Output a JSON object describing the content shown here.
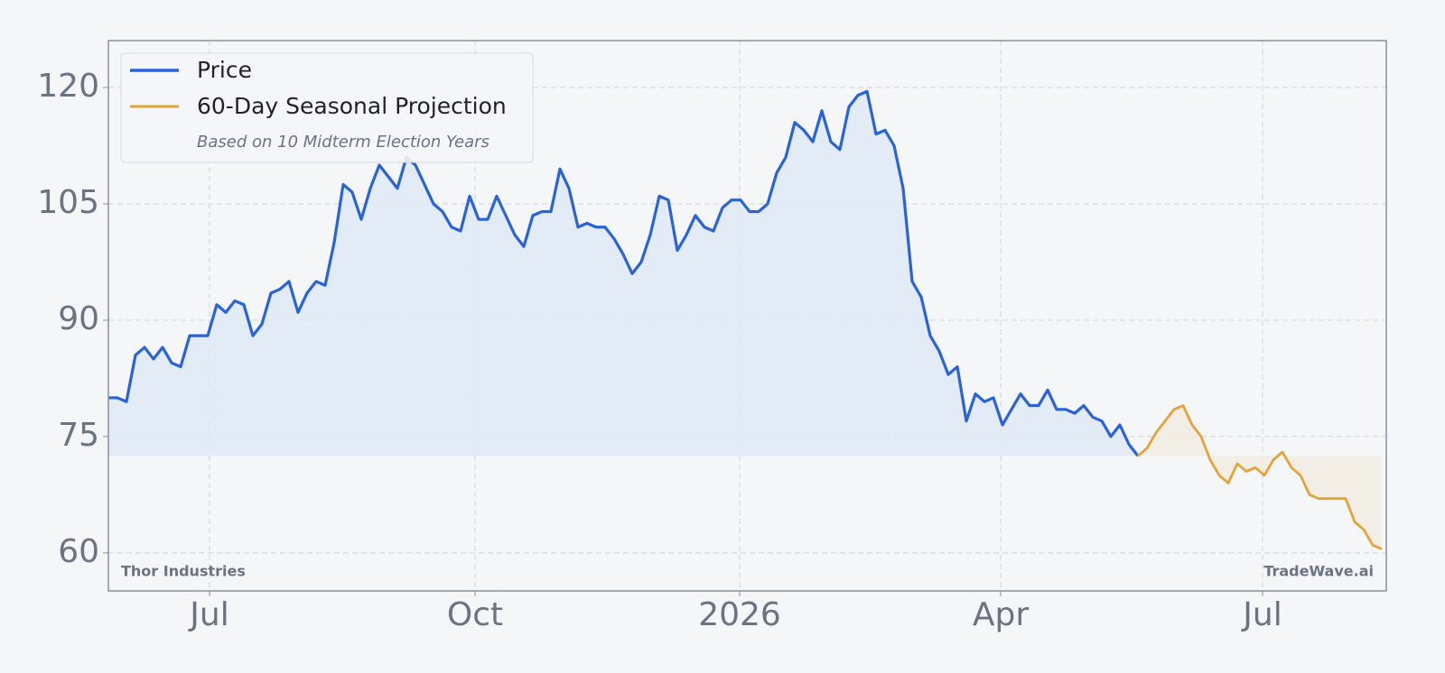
{
  "chart_data": {
    "type": "line",
    "watermark_left": "Thor Industries",
    "watermark_right": "TradeWave.ai",
    "legend_note": "Based on 10 Midterm Election Years",
    "legend": "upper left",
    "grid": true,
    "xlim": [
      0,
      141.5
    ],
    "xticks": [
      {
        "value": 11.2,
        "label": "Jul"
      },
      {
        "value": 40.6,
        "label": "Oct"
      },
      {
        "value": 69.9,
        "label": "2026"
      },
      {
        "value": 98.8,
        "label": "Apr"
      },
      {
        "value": 127.8,
        "label": "Jul"
      }
    ],
    "ylim": [
      55.1,
      126.05
    ],
    "yticks": [
      60,
      75,
      90,
      105,
      120
    ],
    "series": [
      {
        "name": "Price",
        "color": "#2a62d9",
        "fill": "#dfe9f6",
        "values": [
          80,
          80,
          79.5,
          85.5,
          86.5,
          85,
          86.5,
          84.5,
          84,
          88,
          88,
          88,
          92,
          91,
          92.5,
          92,
          88,
          89.5,
          93.5,
          94,
          95,
          91,
          93.5,
          95,
          94.5,
          100,
          107.5,
          106.5,
          103,
          107,
          110,
          108.5,
          107,
          111,
          110,
          107.5,
          105,
          104,
          102,
          101.5,
          106,
          103,
          103,
          106,
          103.5,
          101,
          99.5,
          103.5,
          104,
          104,
          109.5,
          107,
          102,
          102.5,
          102,
          102,
          100.5,
          98.5,
          96,
          97.5,
          101,
          106,
          105.5,
          99,
          101,
          103.5,
          102,
          101.5,
          104.5,
          105.5,
          105.5,
          104,
          104,
          105,
          109,
          111,
          115.5,
          114.5,
          113,
          117,
          113,
          112,
          117.5,
          119,
          119.5,
          114,
          114.5,
          112.5,
          107,
          95,
          93,
          88,
          86,
          83,
          84,
          77,
          80.5,
          79.5,
          80,
          76.5,
          78.5,
          80.5,
          79,
          79,
          81,
          78.5,
          78.5,
          78,
          79,
          77.5,
          77,
          75,
          76.5,
          74,
          72.5,
          null,
          null,
          null,
          null,
          null,
          null,
          null,
          null,
          null,
          null,
          null,
          null,
          null,
          null,
          null,
          null,
          null,
          null,
          null,
          null,
          null,
          null,
          null,
          null,
          null,
          null,
          null
        ]
      },
      {
        "name": "60-Day Seasonal Projection",
        "color": "#e3a43a",
        "fill": "#f1ebe2",
        "values": [
          null,
          null,
          null,
          null,
          null,
          null,
          null,
          null,
          null,
          null,
          null,
          null,
          null,
          null,
          null,
          null,
          null,
          null,
          null,
          null,
          null,
          null,
          null,
          null,
          null,
          null,
          null,
          null,
          null,
          null,
          null,
          null,
          null,
          null,
          null,
          null,
          null,
          null,
          null,
          null,
          null,
          null,
          null,
          null,
          null,
          null,
          null,
          null,
          null,
          null,
          null,
          null,
          null,
          null,
          null,
          null,
          null,
          null,
          null,
          null,
          null,
          null,
          null,
          null,
          null,
          null,
          null,
          null,
          null,
          null,
          null,
          null,
          null,
          null,
          null,
          null,
          null,
          null,
          null,
          null,
          null,
          null,
          null,
          null,
          null,
          null,
          null,
          null,
          null,
          null,
          null,
          null,
          null,
          null,
          null,
          null,
          null,
          null,
          null,
          null,
          null,
          null,
          null,
          null,
          null,
          null,
          null,
          null,
          null,
          null,
          null,
          null,
          null,
          null,
          72.5,
          73.5,
          75.5,
          77,
          78.5,
          79,
          76.5,
          75,
          72,
          70,
          69,
          71.5,
          70.5,
          71,
          70,
          72,
          73,
          71,
          70,
          67.5,
          67,
          67,
          67,
          67,
          64,
          63,
          61,
          60.5
        ]
      }
    ]
  }
}
